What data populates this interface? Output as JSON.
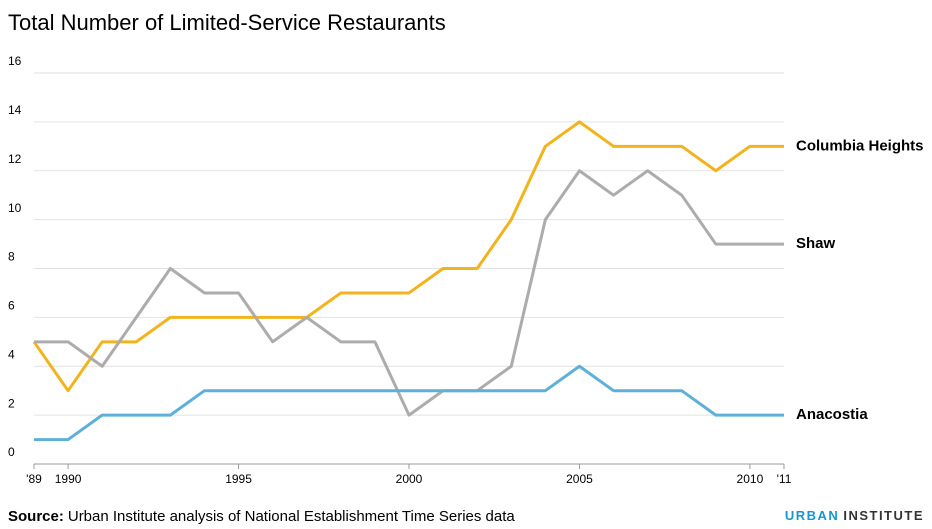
{
  "chart_data": {
    "type": "line",
    "title": "Total Number of Limited-Service Restaurants",
    "x": [
      1989,
      1990,
      1991,
      1992,
      1993,
      1994,
      1995,
      1996,
      1997,
      1998,
      1999,
      2000,
      2001,
      2002,
      2003,
      2004,
      2005,
      2006,
      2007,
      2008,
      2009,
      2010,
      2011
    ],
    "series": [
      {
        "name": "Columbia Heights",
        "color": "#f2b41c",
        "values": [
          5,
          3,
          5,
          5,
          6,
          6,
          6,
          6,
          6,
          7,
          7,
          7,
          8,
          8,
          10,
          13,
          14,
          13,
          13,
          13,
          12,
          13,
          13
        ]
      },
      {
        "name": "Shaw",
        "color": "#adabab",
        "values": [
          5,
          5,
          4,
          6,
          8,
          7,
          7,
          5,
          6,
          5,
          5,
          2,
          3,
          3,
          4,
          10,
          12,
          11,
          12,
          11,
          9,
          9,
          9
        ]
      },
      {
        "name": "Anacostia",
        "color": "#5fb0d9",
        "values": [
          1,
          1,
          2,
          2,
          2,
          3,
          3,
          3,
          3,
          3,
          3,
          3,
          3,
          3,
          3,
          3,
          4,
          3,
          3,
          3,
          2,
          2,
          2
        ]
      }
    ],
    "xlim": [
      1989,
      2011
    ],
    "xticks": [
      {
        "value": 1989,
        "label": "'89"
      },
      1990,
      1995,
      2000,
      2005,
      2010,
      {
        "value": 2011,
        "label": "'11"
      }
    ],
    "ylim": [
      0,
      16
    ],
    "yticks": [
      0,
      2,
      4,
      6,
      8,
      10,
      12,
      14,
      16
    ],
    "grid": true,
    "legend": "end-labels",
    "source_label": "Source:",
    "source_text": "Urban Institute analysis of National Establishment Time Series data",
    "brand": [
      "URBAN",
      "INSTITUTE"
    ]
  }
}
